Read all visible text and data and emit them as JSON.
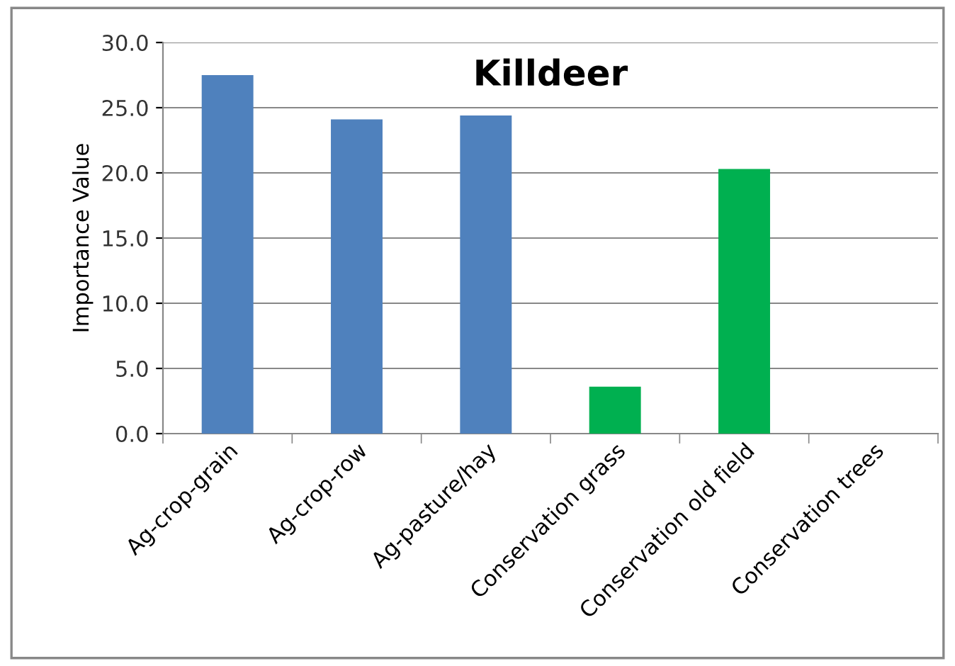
{
  "chart_data": {
    "type": "bar",
    "title": "Killdeer",
    "ylabel": "Importance Value",
    "categories": [
      "Ag-crop-grain",
      "Ag-crop-row",
      "Ag-pasture/hay",
      "Conservation grass",
      "Conservation old field",
      "Conservation trees"
    ],
    "values": [
      27.5,
      24.1,
      24.4,
      3.6,
      20.3,
      0
    ],
    "colors": [
      "#4f81bd",
      "#4f81bd",
      "#4f81bd",
      "#00b050",
      "#00b050",
      "#00b050"
    ],
    "ylim": [
      0,
      30
    ],
    "yticks": [
      {
        "value": 0,
        "label": "0.0"
      },
      {
        "value": 5,
        "label": "5.0"
      },
      {
        "value": 10,
        "label": "10.0"
      },
      {
        "value": 15,
        "label": "15.0"
      },
      {
        "value": 20,
        "label": "20.0"
      },
      {
        "value": 25,
        "label": "25.0"
      },
      {
        "value": 30,
        "label": "30.0"
      }
    ],
    "grid": "y",
    "legend": false
  }
}
